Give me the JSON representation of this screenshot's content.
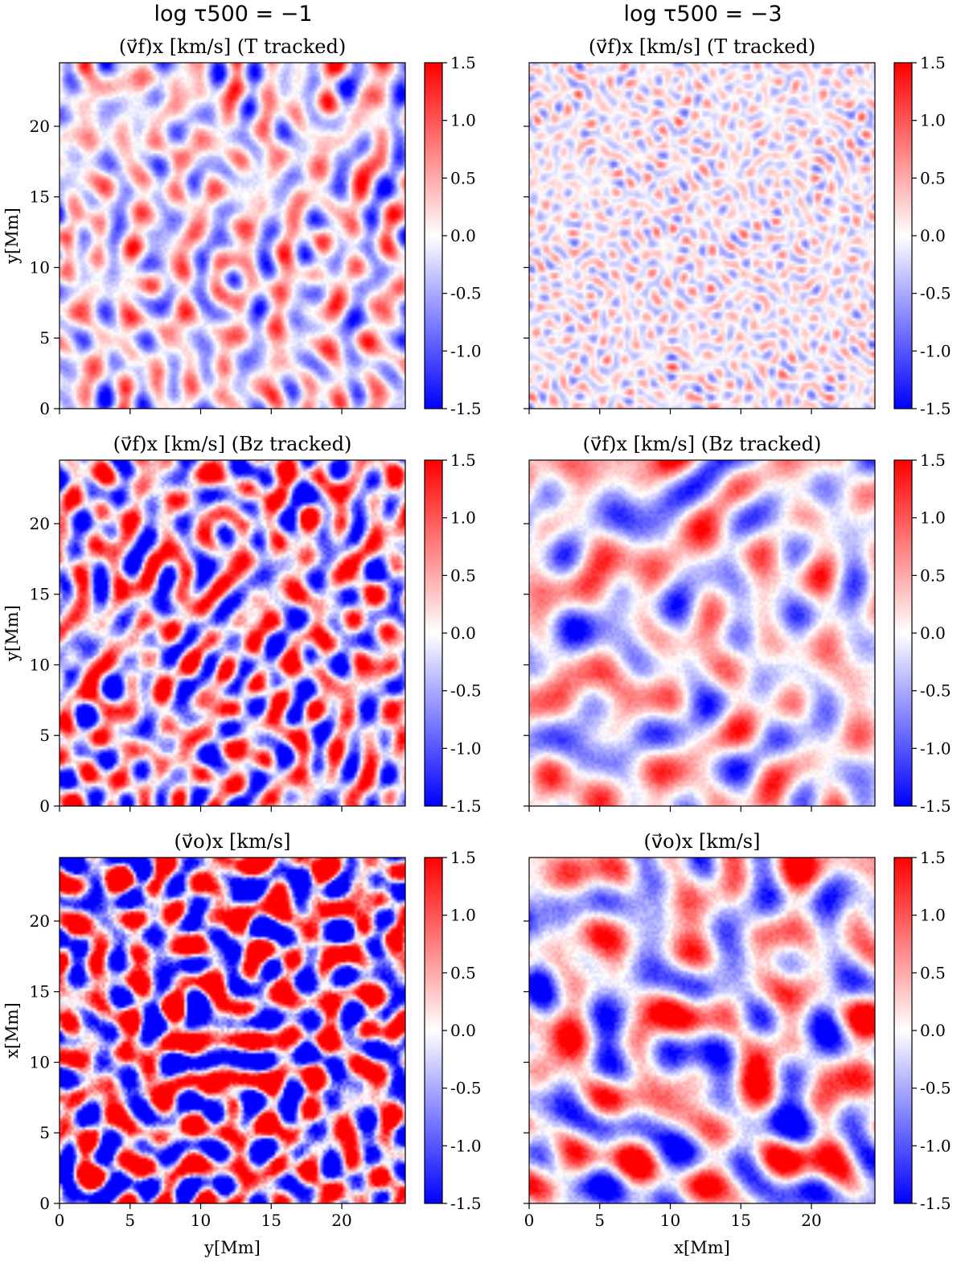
{
  "figure": {
    "col_titles": [
      "log τ500 = −1",
      "log τ500 = −3"
    ]
  },
  "colormap": {
    "name": "bwr",
    "low": "#0000ff",
    "mid": "#ffffff",
    "high": "#ff0000",
    "range": [
      -1.5,
      1.5
    ],
    "ticks": [
      "1.5",
      "1.0",
      "0.5",
      "0.0",
      "-0.5",
      "-1.0",
      "-1.5"
    ]
  },
  "chart_data": [
    {
      "type": "heatmap",
      "title": "(v⃗f)x [km/s] (T tracked)",
      "column": "log τ500 = −1",
      "xlabel": "",
      "ylabel": "y[Mm]",
      "xlim": [
        0,
        24.5
      ],
      "ylim": [
        0,
        24.5
      ],
      "xticks": [
        "0",
        "5",
        "10",
        "15",
        "20"
      ],
      "yticks": [
        "0",
        "5",
        "10",
        "15",
        "20"
      ],
      "show_xticklabels": false,
      "show_yticklabels": true,
      "color_range": [
        -1.5,
        1.5
      ],
      "typical_amplitude": 0.55,
      "structure": "medium"
    },
    {
      "type": "heatmap",
      "title": "(v⃗f)x [km/s] (T tracked)",
      "column": "log τ500 = −3",
      "xlabel": "",
      "ylabel": "",
      "xlim": [
        0,
        24.5
      ],
      "ylim": [
        0,
        24.5
      ],
      "xticks": [
        "0",
        "5",
        "10",
        "15",
        "20"
      ],
      "yticks": [
        "0",
        "5",
        "10",
        "15",
        "20"
      ],
      "show_xticklabels": false,
      "show_yticklabels": false,
      "color_range": [
        -1.5,
        1.5
      ],
      "typical_amplitude": 0.3,
      "structure": "fine"
    },
    {
      "type": "heatmap",
      "title": "(v⃗f)x [km/s] (Bz tracked)",
      "column": "log τ500 = −1",
      "xlabel": "",
      "ylabel": "y[Mm]",
      "xlim": [
        0,
        24.5
      ],
      "ylim": [
        0,
        24.5
      ],
      "xticks": [
        "0",
        "5",
        "10",
        "15",
        "20"
      ],
      "yticks": [
        "0",
        "5",
        "10",
        "15",
        "20"
      ],
      "show_xticklabels": false,
      "show_yticklabels": true,
      "color_range": [
        -1.5,
        1.5
      ],
      "typical_amplitude": 1.0,
      "structure": "medium"
    },
    {
      "type": "heatmap",
      "title": "(v⃗f)x [km/s] (Bz tracked)",
      "column": "log τ500 = −3",
      "xlabel": "",
      "ylabel": "",
      "xlim": [
        0,
        24.5
      ],
      "ylim": [
        0,
        24.5
      ],
      "xticks": [
        "0",
        "5",
        "10",
        "15",
        "20"
      ],
      "yticks": [
        "0",
        "5",
        "10",
        "15",
        "20"
      ],
      "show_xticklabels": false,
      "show_yticklabels": false,
      "color_range": [
        -1.5,
        1.5
      ],
      "typical_amplitude": 0.6,
      "structure": "coarse"
    },
    {
      "type": "heatmap",
      "title": "(v⃗o)x [km/s]",
      "column": "log τ500 = −1",
      "xlabel": "y[Mm]",
      "ylabel": "x[Mm]",
      "xlim": [
        0,
        24.5
      ],
      "ylim": [
        0,
        24.5
      ],
      "xticks": [
        "0",
        "5",
        "10",
        "15",
        "20"
      ],
      "yticks": [
        "0",
        "5",
        "10",
        "15",
        "20"
      ],
      "show_xticklabels": true,
      "show_yticklabels": true,
      "color_range": [
        -1.5,
        1.5
      ],
      "typical_amplitude": 1.6,
      "structure": "medium"
    },
    {
      "type": "heatmap",
      "title": "(v⃗o)x [km/s]",
      "column": "log τ500 = −3",
      "xlabel": "x[Mm]",
      "ylabel": "",
      "xlim": [
        0,
        24.5
      ],
      "ylim": [
        0,
        24.5
      ],
      "xticks": [
        "0",
        "5",
        "10",
        "15",
        "20"
      ],
      "yticks": [
        "0",
        "5",
        "10",
        "15",
        "20"
      ],
      "show_xticklabels": true,
      "show_yticklabels": false,
      "color_range": [
        -1.5,
        1.5
      ],
      "typical_amplitude": 0.8,
      "structure": "coarse"
    }
  ]
}
